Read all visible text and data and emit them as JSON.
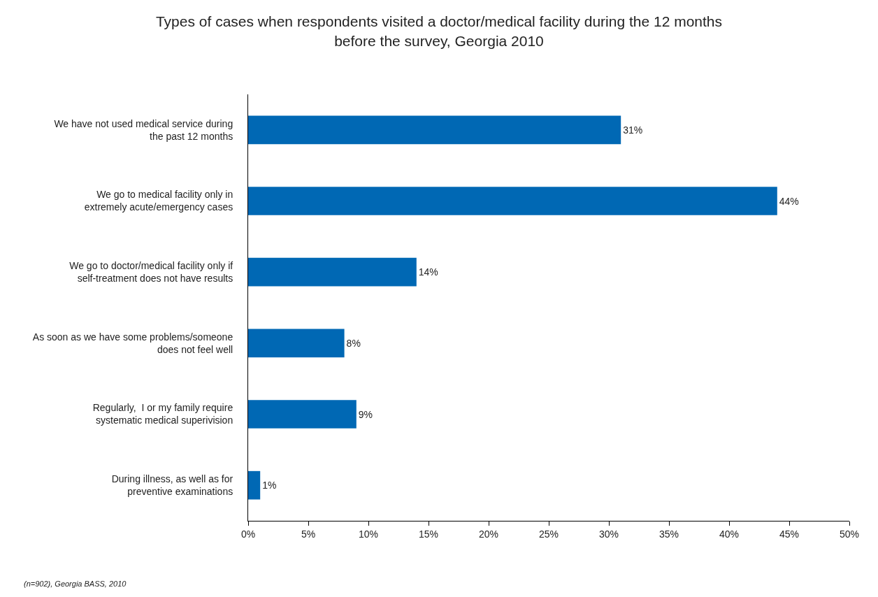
{
  "chart_data": {
    "type": "bar",
    "orientation": "horizontal",
    "title": "Types of cases when respondents visited a doctor/medical facility during the 12 months before the survey, Georgia 2010",
    "categories": [
      "We have not used medical service during the past 12 months",
      "We go to medical facility only in extremely acute/emergency cases",
      "We go to doctor/medical facility only if self-treatment does not have results",
      "As soon as we have some problems/someone does not feel well",
      "Regularly,  I or my family require systematic medical superivision",
      "During illness, as well as for preventive examinations"
    ],
    "values": [
      31,
      44,
      14,
      8,
      9,
      1
    ],
    "value_labels": [
      "31%",
      "44%",
      "14%",
      "8%",
      "9%",
      "1%"
    ],
    "color": "#0068b4",
    "xlim": [
      0,
      50
    ],
    "xticks": [
      {
        "value": 0,
        "label": "0%"
      },
      {
        "value": 5,
        "label": "5%"
      },
      {
        "value": 10,
        "label": "10%"
      },
      {
        "value": 15,
        "label": "15%"
      },
      {
        "value": 20,
        "label": "20%"
      },
      {
        "value": 25,
        "label": "25%"
      },
      {
        "value": 30,
        "label": "30%"
      },
      {
        "value": 35,
        "label": "35%"
      },
      {
        "value": 40,
        "label": "40%"
      },
      {
        "value": 45,
        "label": "45%"
      },
      {
        "value": 50,
        "label": "50%"
      }
    ],
    "grid": false,
    "annotations": [
      "(n=902), Georgia BASS, 2010"
    ]
  }
}
